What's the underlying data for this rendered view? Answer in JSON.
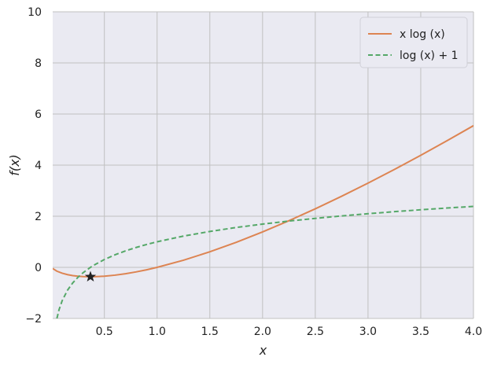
{
  "chart_data": {
    "type": "line",
    "xlabel": "x",
    "ylabel": "f(x)",
    "xlim": [
      0.01,
      4.0
    ],
    "ylim": [
      -2,
      10
    ],
    "x_ticks": [
      0.5,
      1.0,
      1.5,
      2.0,
      2.5,
      3.0,
      3.5,
      4.0
    ],
    "x_tick_labels": [
      "0.5",
      "1.0",
      "1.5",
      "2.0",
      "2.5",
      "3.0",
      "3.5",
      "4.0"
    ],
    "y_ticks": [
      -2,
      0,
      2,
      4,
      6,
      8,
      10
    ],
    "y_tick_labels": [
      "−2",
      "0",
      "2",
      "4",
      "6",
      "8",
      "10"
    ],
    "grid": true,
    "background": "#eaeaf2",
    "legend_position": "top-right",
    "series": [
      {
        "name": "x log (x)",
        "color": "#dd8452",
        "style": "solid",
        "x": [
          0.01,
          0.05,
          0.1,
          0.15,
          0.2,
          0.25,
          0.3,
          0.35,
          0.368,
          0.4,
          0.5,
          0.6,
          0.7,
          0.8,
          0.9,
          1.0,
          1.25,
          1.5,
          1.75,
          2.0,
          2.25,
          2.5,
          2.75,
          3.0,
          3.25,
          3.5,
          3.75,
          4.0
        ],
        "y": [
          -0.046,
          -0.15,
          -0.23,
          -0.285,
          -0.322,
          -0.347,
          -0.361,
          -0.367,
          -0.368,
          -0.367,
          -0.347,
          -0.306,
          -0.25,
          -0.179,
          -0.095,
          0.0,
          0.279,
          0.608,
          0.979,
          1.386,
          1.825,
          2.291,
          2.782,
          3.296,
          3.831,
          4.385,
          4.957,
          5.545
        ]
      },
      {
        "name": "log (x) + 1",
        "color": "#55a868",
        "style": "dashed",
        "x": [
          0.05,
          0.07,
          0.1,
          0.15,
          0.2,
          0.25,
          0.3,
          0.368,
          0.4,
          0.5,
          0.6,
          0.7,
          0.8,
          0.9,
          1.0,
          1.25,
          1.5,
          1.75,
          2.0,
          2.25,
          2.5,
          2.75,
          3.0,
          3.25,
          3.5,
          3.75,
          4.0
        ],
        "y": [
          -2.0,
          -1.659,
          -1.303,
          -0.897,
          -0.609,
          -0.386,
          -0.204,
          0.0,
          0.084,
          0.307,
          0.489,
          0.643,
          0.777,
          0.895,
          1.0,
          1.223,
          1.405,
          1.56,
          1.693,
          1.811,
          1.916,
          2.012,
          2.099,
          2.179,
          2.253,
          2.322,
          2.386
        ]
      }
    ],
    "annotations": [
      {
        "type": "marker",
        "symbol": "star",
        "x": 0.368,
        "y": -0.368,
        "color": "#222222"
      }
    ]
  }
}
